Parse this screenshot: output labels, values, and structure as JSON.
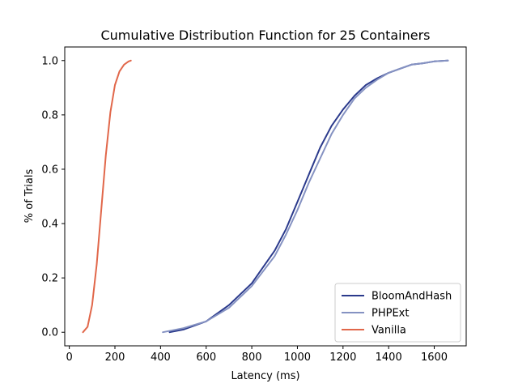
{
  "chart_data": {
    "type": "line",
    "title": "Cumulative Distribution Function for 25 Containers",
    "xlabel": "Latency (ms)",
    "ylabel": "% of Trials",
    "xlim": [
      -20,
      1740
    ],
    "ylim": [
      -0.05,
      1.05
    ],
    "xticks": [
      0,
      200,
      400,
      600,
      800,
      1000,
      1200,
      1400,
      1600
    ],
    "yticks": [
      0.0,
      0.2,
      0.4,
      0.6,
      0.8,
      1.0
    ],
    "xtick_labels": [
      "0",
      "200",
      "400",
      "600",
      "800",
      "1000",
      "1200",
      "1400",
      "1600"
    ],
    "ytick_labels": [
      "0.0",
      "0.2",
      "0.4",
      "0.6",
      "0.8",
      "1.0"
    ],
    "grid": false,
    "legend_position": "lower-right",
    "series": [
      {
        "name": "BloomAndHash",
        "color": "#2b3a8c",
        "x": [
          440,
          500,
          600,
          700,
          800,
          900,
          950,
          1000,
          1050,
          1100,
          1150,
          1200,
          1250,
          1300,
          1350,
          1400,
          1450,
          1500,
          1550,
          1600,
          1660
        ],
        "y": [
          0.0,
          0.01,
          0.04,
          0.1,
          0.18,
          0.3,
          0.38,
          0.48,
          0.58,
          0.68,
          0.76,
          0.82,
          0.87,
          0.91,
          0.935,
          0.955,
          0.97,
          0.985,
          0.99,
          0.997,
          1.0
        ]
      },
      {
        "name": "PHPExt",
        "color": "#8592c2",
        "x": [
          410,
          500,
          600,
          700,
          800,
          900,
          950,
          1000,
          1050,
          1100,
          1150,
          1200,
          1250,
          1300,
          1350,
          1400,
          1450,
          1500,
          1550,
          1600,
          1660
        ],
        "y": [
          0.0,
          0.015,
          0.04,
          0.09,
          0.17,
          0.28,
          0.36,
          0.45,
          0.55,
          0.64,
          0.73,
          0.8,
          0.86,
          0.9,
          0.93,
          0.955,
          0.97,
          0.985,
          0.99,
          0.997,
          1.0
        ]
      },
      {
        "name": "Vanilla",
        "color": "#e1674a",
        "x": [
          60,
          80,
          100,
          120,
          140,
          160,
          180,
          200,
          220,
          240,
          260,
          270
        ],
        "y": [
          0.0,
          0.02,
          0.1,
          0.25,
          0.45,
          0.65,
          0.81,
          0.91,
          0.96,
          0.985,
          0.997,
          1.0
        ]
      }
    ]
  }
}
